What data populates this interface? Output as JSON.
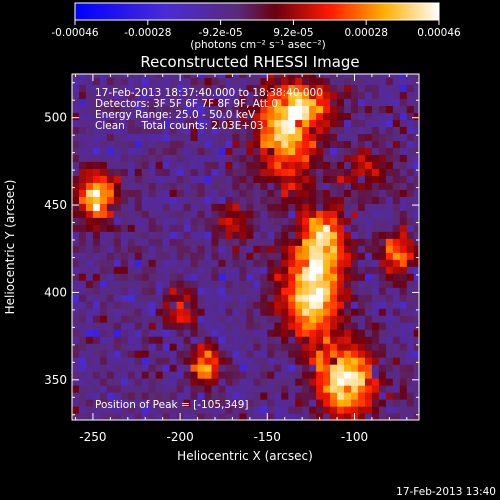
{
  "chart_data": {
    "type": "heatmap",
    "title": "Reconstructed RHESSI Image",
    "xlabel": "Heliocentric X (arcsec)",
    "ylabel": "Heliocentric Y (arcsec)",
    "xlim": [
      -262,
      -63
    ],
    "ylim": [
      327,
      525
    ],
    "xticks": [
      "-250",
      "-200",
      "-150",
      "-100"
    ],
    "yticks": [
      "350",
      "400",
      "450",
      "500"
    ],
    "colorbar": {
      "ticks": [
        "-0.00046",
        "-0.00028",
        "-9.2e-05",
        "9.2e-05",
        "0.00028",
        "0.00046"
      ],
      "vmin": -0.00046,
      "vmax": 0.00046,
      "units": "(photons cm⁻² s⁻¹ asec⁻²)"
    },
    "annotations": [
      "17-Feb-2013 18:37:40.000 to 18:38:40.000",
      "Detectors: 3F 5F 6F 7F 8F 9F, Att 0",
      "Energy Range: 25.0 - 50.0 keV",
      "Clean     Total counts: 2.03E+03"
    ],
    "peak_label": "Position of Peak = [-105,349]",
    "peak": {
      "x": -105,
      "y": 349
    },
    "bright_sources": [
      {
        "x": -105,
        "y": 349,
        "intensity": 1.0,
        "sx": 12,
        "sy": 14
      },
      {
        "x": -125,
        "y": 398,
        "intensity": 0.9,
        "sx": 12,
        "sy": 18
      },
      {
        "x": -118,
        "y": 430,
        "intensity": 0.75,
        "sx": 10,
        "sy": 14
      },
      {
        "x": -140,
        "y": 492,
        "intensity": 0.85,
        "sx": 12,
        "sy": 20
      },
      {
        "x": -125,
        "y": 508,
        "intensity": 0.6,
        "sx": 10,
        "sy": 8
      },
      {
        "x": -248,
        "y": 455,
        "intensity": 0.9,
        "sx": 8,
        "sy": 10
      },
      {
        "x": -185,
        "y": 358,
        "intensity": 0.75,
        "sx": 6,
        "sy": 7
      },
      {
        "x": -200,
        "y": 390,
        "intensity": 0.45,
        "sx": 8,
        "sy": 8
      },
      {
        "x": -75,
        "y": 422,
        "intensity": 0.6,
        "sx": 7,
        "sy": 10
      },
      {
        "x": -170,
        "y": 440,
        "intensity": 0.35,
        "sx": 8,
        "sy": 8
      },
      {
        "x": -95,
        "y": 470,
        "intensity": 0.4,
        "sx": 10,
        "sy": 10
      }
    ]
  },
  "footer": {
    "timestamp": "17-Feb-2013 13:40"
  }
}
